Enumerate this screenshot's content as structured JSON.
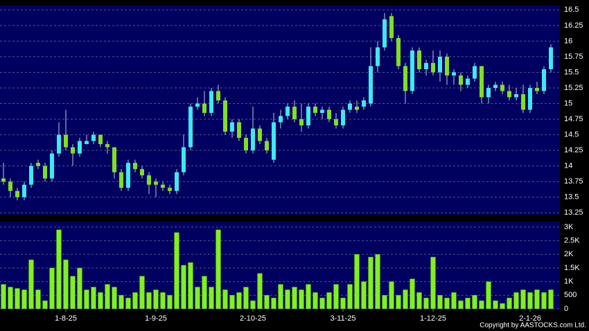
{
  "chart_data": [
    {
      "type": "candlestick",
      "open": [
        13.8,
        13.75,
        13.6,
        13.5,
        13.7,
        14.05,
        14.0,
        13.8,
        14.2,
        14.5,
        14.3,
        14.2,
        14.35,
        14.4,
        14.5,
        14.35,
        14.3,
        13.9,
        13.65,
        14.05,
        13.95,
        13.85,
        13.75,
        13.7,
        13.65,
        13.6,
        13.9,
        14.3,
        14.95,
        15.0,
        14.85,
        15.2,
        15.05,
        14.55,
        14.7,
        14.45,
        14.25,
        14.6,
        14.4,
        14.1,
        14.7,
        14.8,
        14.95,
        14.75,
        14.65,
        14.95,
        14.85,
        14.9,
        14.75,
        14.65,
        14.9,
        14.95,
        14.95,
        15.0,
        15.6,
        15.9,
        16.4,
        16.05,
        15.6,
        15.2,
        15.85,
        15.55,
        15.65,
        15.5,
        15.75,
        15.45,
        15.45,
        15.3,
        15.4,
        15.6,
        15.1,
        15.25,
        15.3,
        15.2,
        15.1,
        15.15,
        14.9,
        15.25,
        15.2,
        15.55
      ],
      "high": [
        14.05,
        13.8,
        13.65,
        13.75,
        14.05,
        14.1,
        14.05,
        14.25,
        14.7,
        14.9,
        14.35,
        14.45,
        14.5,
        14.55,
        14.5,
        14.4,
        14.3,
        13.95,
        14.1,
        14.1,
        14.0,
        13.9,
        13.8,
        13.75,
        13.7,
        13.95,
        14.5,
        15.0,
        15.1,
        15.2,
        15.25,
        15.3,
        15.1,
        14.75,
        14.75,
        14.5,
        14.95,
        14.65,
        14.45,
        14.85,
        14.9,
        15.0,
        15.05,
        15.0,
        15.0,
        15.0,
        14.95,
        14.95,
        14.85,
        14.95,
        15.05,
        15.05,
        15.1,
        15.9,
        16.0,
        16.45,
        16.45,
        16.1,
        15.65,
        15.9,
        15.9,
        15.7,
        15.85,
        15.85,
        15.8,
        15.55,
        15.5,
        15.45,
        15.65,
        15.6,
        15.3,
        15.35,
        15.35,
        15.3,
        15.25,
        15.3,
        15.3,
        15.35,
        15.6,
        15.95
      ],
      "low": [
        13.7,
        13.5,
        13.45,
        13.45,
        13.65,
        13.95,
        13.75,
        13.75,
        14.15,
        14.25,
        14.0,
        14.15,
        14.35,
        14.35,
        14.3,
        14.2,
        13.8,
        13.6,
        13.6,
        13.9,
        13.8,
        13.55,
        13.5,
        13.6,
        13.55,
        13.55,
        13.85,
        14.25,
        14.9,
        14.8,
        14.8,
        15.0,
        14.5,
        14.45,
        14.4,
        14.2,
        14.2,
        14.35,
        14.2,
        14.05,
        14.6,
        14.75,
        14.7,
        14.55,
        14.6,
        14.8,
        14.75,
        14.7,
        14.6,
        14.6,
        14.85,
        14.85,
        14.9,
        14.95,
        15.5,
        15.85,
        16.0,
        15.55,
        15.0,
        15.15,
        15.5,
        15.45,
        15.45,
        15.35,
        15.3,
        15.3,
        15.2,
        15.25,
        15.35,
        15.0,
        15.0,
        15.2,
        15.15,
        15.05,
        15.05,
        14.85,
        14.85,
        15.15,
        15.15,
        15.5
      ],
      "close": [
        13.75,
        13.6,
        13.5,
        13.7,
        14.0,
        14.0,
        13.8,
        14.2,
        14.5,
        14.3,
        14.2,
        14.4,
        14.4,
        14.5,
        14.35,
        14.3,
        13.9,
        13.65,
        14.05,
        13.95,
        13.85,
        13.7,
        13.7,
        13.65,
        13.6,
        13.9,
        14.3,
        14.95,
        15.0,
        14.85,
        15.2,
        15.05,
        14.55,
        14.7,
        14.45,
        14.25,
        14.6,
        14.4,
        14.25,
        14.7,
        14.8,
        14.95,
        14.75,
        14.65,
        14.95,
        14.85,
        14.9,
        14.75,
        14.65,
        14.9,
        15.0,
        14.9,
        15.05,
        15.6,
        15.9,
        16.35,
        16.05,
        15.6,
        15.2,
        15.85,
        15.55,
        15.65,
        15.5,
        15.75,
        15.45,
        15.5,
        15.3,
        15.4,
        15.6,
        15.1,
        15.25,
        15.3,
        15.2,
        15.1,
        15.15,
        14.9,
        15.25,
        15.2,
        15.55,
        15.9
      ],
      "up_color": "#40e8f0",
      "down_color": "#80e020",
      "ylim": [
        13.22,
        16.57
      ],
      "yticks": [
        13.25,
        13.5,
        13.75,
        14,
        14.25,
        14.5,
        14.75,
        15,
        15.25,
        15.5,
        15.75,
        16,
        16.25,
        16.5
      ],
      "grid": true
    },
    {
      "type": "bar",
      "categories": [
        null,
        null,
        null,
        null,
        null,
        null,
        null,
        null,
        null,
        "1-8-25",
        null,
        null,
        null,
        null,
        null,
        null,
        null,
        null,
        null,
        null,
        null,
        null,
        "1-9-25",
        null,
        null,
        null,
        null,
        null,
        null,
        null,
        null,
        null,
        null,
        null,
        null,
        null,
        "2-10-25",
        null,
        null,
        null,
        null,
        null,
        null,
        null,
        null,
        null,
        null,
        null,
        null,
        "3-11-25",
        null,
        null,
        null,
        null,
        null,
        null,
        null,
        null,
        null,
        null,
        null,
        null,
        "1-12-25",
        null,
        null,
        null,
        null,
        null,
        null,
        null,
        null,
        null,
        null,
        null,
        null,
        null,
        "2-1-26",
        null,
        null,
        null
      ],
      "values": [
        900,
        800,
        750,
        700,
        1800,
        700,
        300,
        1500,
        2900,
        1800,
        1200,
        1500,
        700,
        800,
        600,
        900,
        800,
        500,
        400,
        600,
        1200,
        600,
        700,
        600,
        500,
        2800,
        1600,
        1700,
        800,
        1200,
        800,
        2900,
        700,
        500,
        600,
        800,
        300,
        1300,
        500,
        400,
        900,
        700,
        800,
        700,
        900,
        600,
        400,
        600,
        900,
        400,
        900,
        2000,
        1000,
        1900,
        2000,
        500,
        1000,
        500,
        700,
        1100,
        600,
        400,
        1900,
        500,
        400,
        600,
        300,
        400,
        500,
        300,
        1000,
        300,
        200,
        400,
        600,
        700,
        600,
        700,
        600,
        700
      ],
      "color": "#80f020",
      "ylim": [
        0,
        3200
      ],
      "yticks": [
        0,
        500,
        {
          "value": 1000,
          "label": "1K"
        },
        {
          "value": 1500,
          "label": "1.5K"
        },
        {
          "value": 2000,
          "label": "2K"
        },
        {
          "value": 2500,
          "label": "2.5K"
        },
        {
          "value": 3000,
          "label": "3K"
        }
      ],
      "grid": true
    }
  ],
  "copyright": "Copyright by AASTOCKS.com Ltd."
}
